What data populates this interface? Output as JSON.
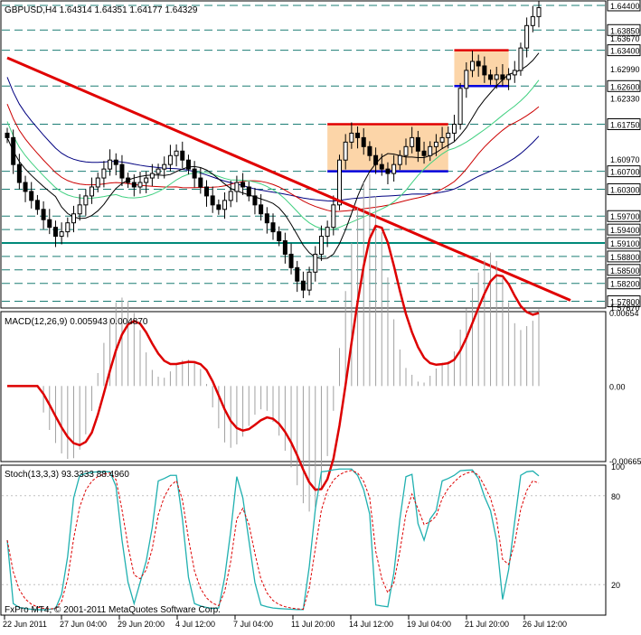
{
  "chart_data": [
    {
      "type": "candlestick",
      "title": "GBPUSD,H4  1.64314 1.64351 1.64177 1.64329",
      "symbol": "GBPUSD",
      "timeframe": "H4",
      "ohlc_text": "1.64314 1.64351 1.64177 1.64329",
      "y_range": [
        1.5767,
        1.6448
      ],
      "price_labels": [
        {
          "value": 1.644,
          "text": "1.64400",
          "boxed": true
        },
        {
          "value": 1.6385,
          "text": "1.63850",
          "boxed": true
        },
        {
          "value": 1.6367,
          "text": "1.63670",
          "boxed": false
        },
        {
          "value": 1.634,
          "text": "1.63400",
          "boxed": true
        },
        {
          "value": 1.6299,
          "text": "1.62990",
          "boxed": false
        },
        {
          "value": 1.626,
          "text": "1.62600",
          "boxed": true
        },
        {
          "value": 1.6233,
          "text": "1.62330",
          "boxed": false
        },
        {
          "value": 1.6175,
          "text": "1.61750",
          "boxed": true
        },
        {
          "value": 1.6097,
          "text": "1.60970",
          "boxed": false
        },
        {
          "value": 1.607,
          "text": "1.60700",
          "boxed": true
        },
        {
          "value": 1.603,
          "text": "1.60300",
          "boxed": true
        },
        {
          "value": 1.597,
          "text": "1.59700",
          "boxed": true
        },
        {
          "value": 1.594,
          "text": "1.59400",
          "boxed": true
        },
        {
          "value": 1.591,
          "text": "1.59100",
          "boxed": true
        },
        {
          "value": 1.588,
          "text": "1.58800",
          "boxed": true
        },
        {
          "value": 1.585,
          "text": "1.58500",
          "boxed": true
        },
        {
          "value": 1.582,
          "text": "1.58200",
          "boxed": true
        },
        {
          "value": 1.578,
          "text": "1.57800",
          "boxed": true
        },
        {
          "value": 1.5767,
          "text": "1.57670",
          "boxed": false
        }
      ],
      "x_labels": [
        "22 Jun 2011",
        "27 Jun 04:00",
        "29 Jun 20:00",
        "4 Jul 12:00",
        "7 Jul 04:00",
        "11 Jul 20:00",
        "14 Jul 12:00",
        "19 Jul 04:00",
        "21 Jul 20:00",
        "26 Jul 12:00"
      ],
      "close_series": [
        1.6145,
        1.6085,
        1.6045,
        1.6025,
        1.6005,
        1.5985,
        1.5962,
        1.5945,
        1.5925,
        1.5935,
        1.5955,
        1.5975,
        1.5995,
        1.6015,
        1.6035,
        1.6055,
        1.6075,
        1.6095,
        1.6085,
        1.6055,
        1.6045,
        1.6035,
        1.6045,
        1.6055,
        1.6065,
        1.6075,
        1.6085,
        1.6105,
        1.6115,
        1.6095,
        1.6075,
        1.6055,
        1.6035,
        1.6015,
        1.5995,
        1.5985,
        1.6005,
        1.6025,
        1.6045,
        1.6035,
        1.6015,
        1.5995,
        1.5975,
        1.5955,
        1.5935,
        1.5915,
        1.5885,
        1.5855,
        1.5825,
        1.5805,
        1.5845,
        1.5885,
        1.5925,
        1.5945,
        1.5995,
        1.6095,
        1.6135,
        1.6155,
        1.6145,
        1.6125,
        1.6105,
        1.6085,
        1.6075,
        1.6065,
        1.6085,
        1.6105,
        1.6125,
        1.6145,
        1.6115,
        1.6105,
        1.6125,
        1.6135,
        1.6145,
        1.6155,
        1.6175,
        1.6255,
        1.6295,
        1.6315,
        1.6305,
        1.6285,
        1.6275,
        1.6285,
        1.6275,
        1.6285,
        1.6295,
        1.6345,
        1.6395,
        1.6415,
        1.6435
      ],
      "annotations": {
        "trendline": {
          "from": {
            "bar": 0,
            "price": 1.6323
          },
          "to": {
            "bar": 88,
            "price": 1.5782
          },
          "color": "#e00000"
        },
        "rectangles": [
          {
            "bar_from": 53,
            "bar_to": 73,
            "top": 1.6175,
            "bottom": 1.607,
            "fill": "#fcd5a8",
            "top_line": "#e00000",
            "bottom_line": "#0000dd"
          },
          {
            "bar_from": 74,
            "bar_to": 83,
            "top": 1.634,
            "bottom": 1.626,
            "fill": "#fcd5a8",
            "top_line": "#e00000",
            "bottom_line": "#0000dd"
          }
        ],
        "horizontal_levels": [
          1.644,
          1.6385,
          1.634,
          1.626,
          1.6175,
          1.607,
          1.603,
          1.597,
          1.594,
          1.591,
          1.588,
          1.585,
          1.582,
          1.578
        ],
        "highlighted_level": 1.591,
        "moving_averages": [
          {
            "color": "#000080",
            "period": 200
          },
          {
            "color": "#cc0000",
            "period": 100
          },
          {
            "color": "#40d080",
            "period": 50
          },
          {
            "color": "#000000",
            "period": 20
          }
        ]
      }
    },
    {
      "type": "macd",
      "title": "MACD(12,26,9) 0.005943 0.004870",
      "y_range": [
        -0.00665,
        0.00654
      ],
      "y_labels": [
        {
          "value": 0.00654,
          "text": "0.00654"
        },
        {
          "value": 0.0,
          "text": "0.00"
        },
        {
          "value": -0.00665,
          "text": "-0.00665"
        }
      ],
      "signal_color": "#dd0000"
    },
    {
      "type": "stochastic",
      "title": "Stoch(13,3,3) 93.3333 88.4960",
      "y_range": [
        0,
        100
      ],
      "y_labels": [
        {
          "value": 100,
          "text": "100"
        },
        {
          "value": 80,
          "text": "80"
        },
        {
          "value": 20,
          "text": "20"
        }
      ],
      "main_color": "#20b0b0",
      "signal_color": "#dd0000"
    }
  ],
  "footer": {
    "copyright": "FxPro MT4, © 2001-2011 MetaQuotes Software Corp."
  },
  "colors": {
    "background": "#ffffff",
    "grid_dashes": "#1b7d74",
    "candles": "#000000",
    "highlight_level": "#008a7a"
  }
}
